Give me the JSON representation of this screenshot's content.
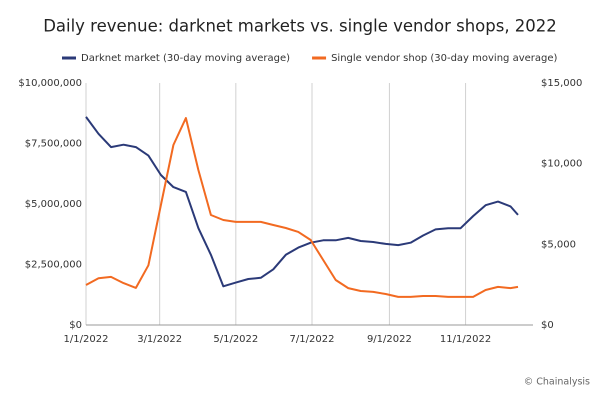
{
  "chart_data": {
    "type": "line",
    "title": "Daily revenue: darknet markets vs. single vendor shops, 2022",
    "source": "© Chainalysis",
    "x": [
      "2022-01-01",
      "2022-01-11",
      "2022-01-21",
      "2022-01-31",
      "2022-02-10",
      "2022-02-20",
      "2022-03-02",
      "2022-03-12",
      "2022-03-22",
      "2022-04-01",
      "2022-04-11",
      "2022-04-21",
      "2022-05-01",
      "2022-05-11",
      "2022-05-21",
      "2022-05-31",
      "2022-06-10",
      "2022-06-20",
      "2022-06-30",
      "2022-07-10",
      "2022-07-20",
      "2022-07-30",
      "2022-08-09",
      "2022-08-19",
      "2022-08-29",
      "2022-09-08",
      "2022-09-18",
      "2022-09-28",
      "2022-10-08",
      "2022-10-18",
      "2022-10-28",
      "2022-11-07",
      "2022-11-17",
      "2022-11-27",
      "2022-12-07",
      "2022-12-13"
    ],
    "series": [
      {
        "name": "Darknet market (30-day moving average)",
        "color": "#2b3a78",
        "values": [
          8600000,
          7900000,
          7350000,
          7450000,
          7350000,
          7000000,
          6200000,
          5700000,
          5500000,
          4000000,
          2900000,
          1600000,
          1750000,
          1900000,
          1950000,
          2300000,
          2900000,
          3200000,
          3400000,
          3500000,
          3500000,
          3600000,
          3470000,
          3430000,
          3350000,
          3300000,
          3400000,
          3700000,
          3950000,
          4000000,
          4000000,
          4500000,
          4950000,
          5100000,
          4900000,
          4550000
        ]
      },
      {
        "name": "Single vendor shop (30-day moving average)",
        "color": "#f26a21",
        "axis": "y2",
        "values": [
          2480,
          2900,
          2980,
          2600,
          2300,
          3700,
          7440,
          11160,
          12830,
          9600,
          6820,
          6510,
          6390,
          6390,
          6390,
          6200,
          6010,
          5770,
          5270,
          4030,
          2790,
          2290,
          2110,
          2050,
          1920,
          1740,
          1740,
          1800,
          1800,
          1740,
          1740,
          1740,
          2170,
          2360,
          2290,
          2360
        ]
      }
    ],
    "xlim": [
      "2022-01-01",
      "2022-12-25"
    ],
    "xticks": [
      {
        "value": "2022-01-01",
        "label": "1/1/2022"
      },
      {
        "value": "2022-03-01",
        "label": "3/1/2022"
      },
      {
        "value": "2022-05-01",
        "label": "5/1/2022"
      },
      {
        "value": "2022-07-01",
        "label": "7/1/2022"
      },
      {
        "value": "2022-09-01",
        "label": "9/1/2022"
      },
      {
        "value": "2022-11-01",
        "label": "11/1/2022"
      }
    ],
    "ylim": [
      0,
      10000000
    ],
    "yticks": [
      {
        "value": 0,
        "label": "$0"
      },
      {
        "value": 2500000,
        "label": "$2,500,000"
      },
      {
        "value": 5000000,
        "label": "$5,000,000"
      },
      {
        "value": 7500000,
        "label": "$7,500,000"
      },
      {
        "value": 10000000,
        "label": "$10,000,000"
      }
    ],
    "y2lim": [
      0,
      15000
    ],
    "y2ticks": [
      {
        "value": 0,
        "label": "$0"
      },
      {
        "value": 5000,
        "label": "$5,000"
      },
      {
        "value": 10000,
        "label": "$10,000"
      },
      {
        "value": 15000,
        "label": "$15,000"
      }
    ],
    "grid": "x",
    "legend": "top"
  }
}
